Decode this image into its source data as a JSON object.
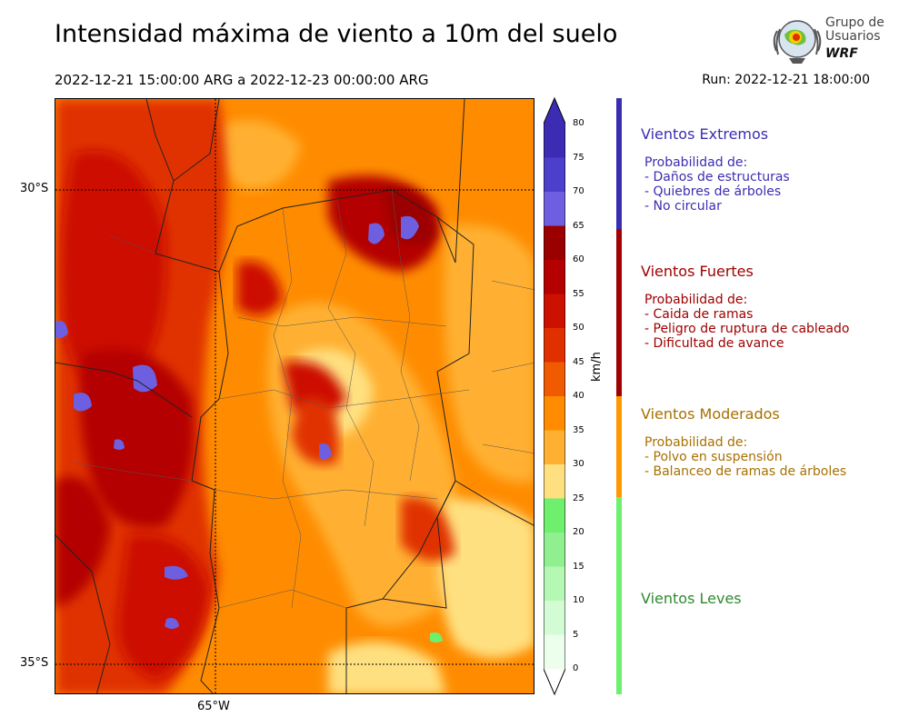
{
  "header": {
    "title": "Intensidad máxima de viento a 10m del suelo",
    "period": "2022-12-21 15:00:00 ARG  a  2022-12-23 00:00:00 ARG",
    "run": "Run: 2022-12-21 18:00:00"
  },
  "logo": {
    "line1": "Grupo de",
    "line2": "Usuarios",
    "line3": "WRF"
  },
  "axes": {
    "lat_30": "30°S",
    "lat_35": "35°S",
    "lon_65": "65°W"
  },
  "colorbar": {
    "unit": "km/h",
    "levels": [
      "80",
      "75",
      "70",
      "65",
      "60",
      "55",
      "50",
      "45",
      "40",
      "35",
      "30",
      "25",
      "20",
      "15",
      "10",
      "5",
      "0"
    ],
    "colors": [
      "#3c2cb4",
      "#4b3fcc",
      "#6d5fe0",
      "#9b0000",
      "#b40000",
      "#cc1100",
      "#e03000",
      "#f05a00",
      "#ff8c00",
      "#ffb030",
      "#ffe080",
      "#6ef06e",
      "#90f090",
      "#b4f8b4",
      "#d4fcd4",
      "#ecfeec"
    ]
  },
  "legend": {
    "extremos": {
      "title": "Vientos Extremos",
      "color": "#3a2eb0",
      "items": [
        "Probabilidad de:",
        "- Daños de estructuras",
        "- Quiebres de árboles",
        "- No circular"
      ]
    },
    "fuertes": {
      "title": "Vientos Fuertes",
      "color": "#a00000",
      "items": [
        "Probabilidad de:",
        "- Caida de ramas",
        "- Peligro de ruptura de cableado",
        "- Dificultad de avance"
      ]
    },
    "moderados": {
      "title": "Vientos Moderados",
      "color": "#a87000",
      "bar_color": "#ff9900",
      "items": [
        "Probabilidad de:",
        "- Polvo en suspensión",
        "- Balanceo de ramas de árboles"
      ]
    },
    "leves": {
      "title": "Vientos Leves",
      "color": "#2e8b2e",
      "bar_color": "#6ef06e"
    }
  }
}
